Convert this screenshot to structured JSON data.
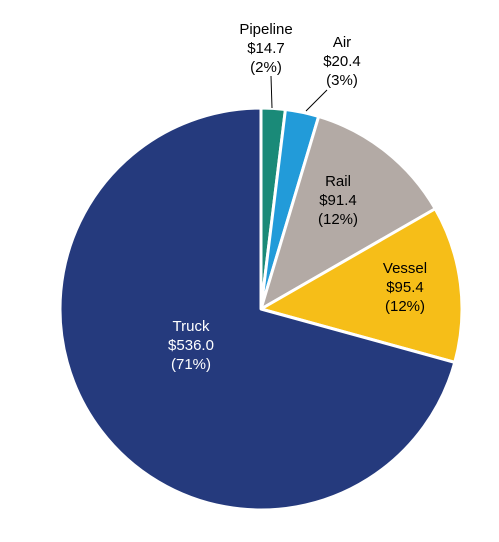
{
  "chart_data": {
    "type": "pie",
    "slices": [
      {
        "name": "Pipeline",
        "value": 14.7,
        "value_label": "$14.7",
        "pct_label": "(2%)",
        "color": "#1a8a78",
        "label_color": "#000000"
      },
      {
        "name": "Air",
        "value": 20.4,
        "value_label": "$20.4",
        "pct_label": "(3%)",
        "color": "#229bd9",
        "label_color": "#000000"
      },
      {
        "name": "Rail",
        "value": 91.4,
        "value_label": "$91.4",
        "pct_label": "(12%)",
        "color": "#b3aaa5",
        "label_color": "#000000"
      },
      {
        "name": "Vessel",
        "value": 95.4,
        "value_label": "$95.4",
        "pct_label": "(12%)",
        "color": "#f6be18",
        "label_color": "#000000"
      },
      {
        "name": "Truck",
        "value": 536.0,
        "value_label": "$536.0",
        "pct_label": "(71%)",
        "color": "#253a7d",
        "label_color": "#ffffff"
      }
    ],
    "start_angle": "top",
    "direction": "clockwise",
    "slice_border_color": "#ffffff",
    "legend": "none"
  }
}
